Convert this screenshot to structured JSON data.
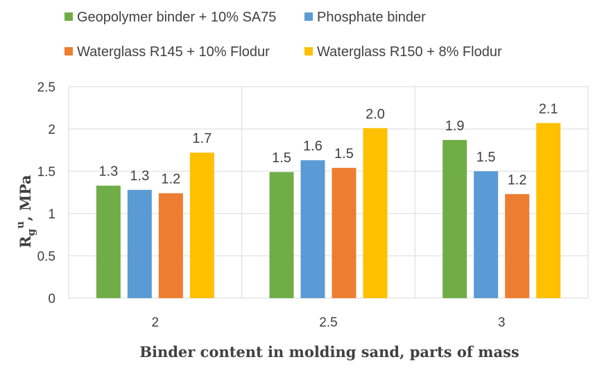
{
  "chart_data": {
    "type": "bar",
    "categories": [
      "2",
      "2.5",
      "3"
    ],
    "series": [
      {
        "name": "Geopolymer binder + 10% SA75",
        "color": "#70ad47",
        "values": [
          1.33,
          1.49,
          1.87
        ],
        "labels": [
          "1.3",
          "1.5",
          "1.9"
        ]
      },
      {
        "name": "Phosphate binder",
        "color": "#5b9bd5",
        "values": [
          1.28,
          1.63,
          1.5
        ],
        "labels": [
          "1.3",
          "1.6",
          "1.5"
        ]
      },
      {
        "name": "Waterglass R145 + 10% Flodur",
        "color": "#ed7d31",
        "values": [
          1.24,
          1.54,
          1.23
        ],
        "labels": [
          "1.2",
          "1.5",
          "1.2"
        ]
      },
      {
        "name": "Waterglass R150 + 8% Flodur",
        "color": "#ffc000",
        "values": [
          1.72,
          2.01,
          2.07
        ],
        "labels": [
          "1.7",
          "2.0",
          "2.1"
        ]
      }
    ],
    "xlabel": "Binder content in molding sand, parts of mass",
    "ylabel": {
      "main": "R",
      "sub": "g",
      "sup": "u",
      "rest": ", MPa"
    },
    "ylim": [
      0,
      2.5
    ],
    "yticks": [
      "0",
      "0.5",
      "1",
      "1.5",
      "2",
      "2.5"
    ],
    "grid": true,
    "legend_position": "top"
  }
}
